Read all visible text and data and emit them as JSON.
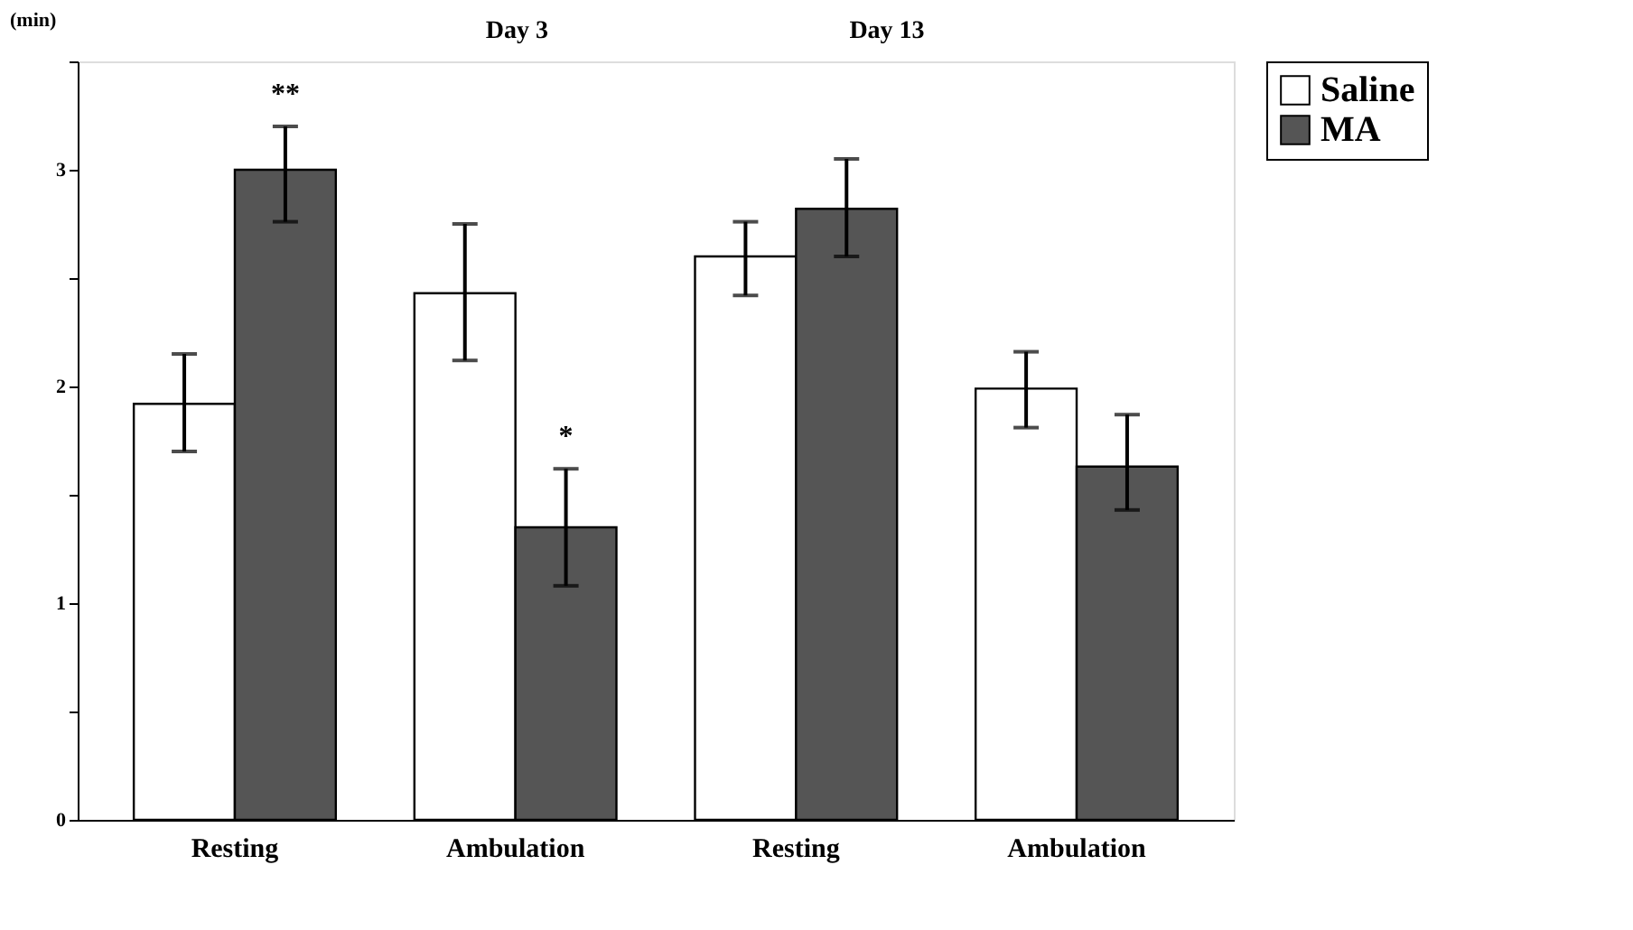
{
  "chart_data": {
    "type": "bar",
    "ylabel": "(min)",
    "categories": [
      "Resting",
      "Ambulation",
      "Resting",
      "Ambulation"
    ],
    "series": [
      {
        "name": "Saline",
        "color": "#ffffff",
        "values": [
          1.92,
          2.43,
          2.6,
          1.99
        ],
        "errors": [
          [
            1.7,
            2.15
          ],
          [
            2.12,
            2.75
          ],
          [
            2.42,
            2.76
          ],
          [
            1.81,
            2.16
          ]
        ]
      },
      {
        "name": "MA",
        "color": "#555555",
        "values": [
          3.0,
          1.35,
          2.82,
          1.63
        ],
        "errors": [
          [
            2.76,
            3.2
          ],
          [
            1.08,
            1.62
          ],
          [
            2.6,
            3.05
          ],
          [
            1.43,
            1.87
          ]
        ]
      }
    ],
    "ylim": [
      0,
      3.5
    ],
    "yticks": [
      0,
      {
        "value": 0.5,
        "label": null
      },
      1,
      {
        "value": 1.5,
        "label": null
      },
      2,
      {
        "value": 2.5,
        "label": null
      },
      3,
      {
        "value": 3.5,
        "label": null
      }
    ],
    "annotations": [
      "Day 3",
      "Day 13",
      "**",
      "*"
    ],
    "legend": "right",
    "grid": false
  }
}
